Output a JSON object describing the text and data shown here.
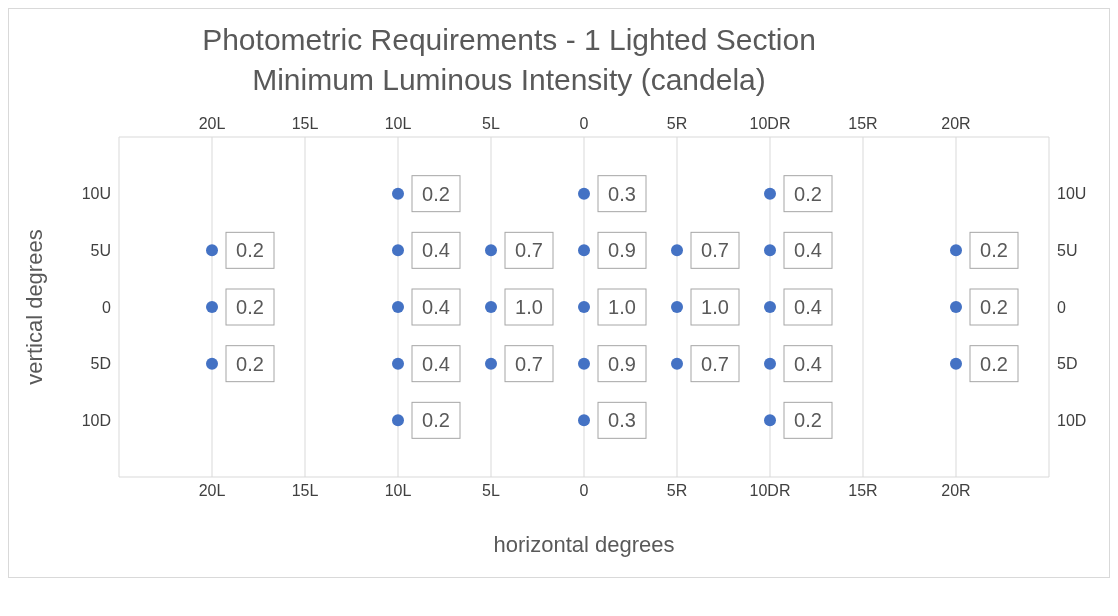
{
  "chart_data": {
    "type": "scatter",
    "title": "Photometric Requirements - 1 Lighted Section",
    "subtitle": "Minimum Luminous Intensity (candela)",
    "xlabel": "horizontal degrees",
    "ylabel": "vertical degrees",
    "xlim": [
      -25,
      25
    ],
    "xticks": [
      {
        "value": -20,
        "label": "20L"
      },
      {
        "value": -15,
        "label": "15L"
      },
      {
        "value": -10,
        "label": "10L"
      },
      {
        "value": -5,
        "label": "5L"
      },
      0,
      {
        "value": 5,
        "label": "5R"
      },
      {
        "value": 10,
        "label": "10DR"
      },
      {
        "value": 15,
        "label": "15R"
      },
      {
        "value": 20,
        "label": "20R"
      }
    ],
    "x2lim": [
      -25,
      25
    ],
    "x2ticks": [
      {
        "value": -20,
        "label": "20L"
      },
      {
        "value": -15,
        "label": "15L"
      },
      {
        "value": -10,
        "label": "10L"
      },
      {
        "value": -5,
        "label": "5L"
      },
      0,
      {
        "value": 5,
        "label": "5R"
      },
      {
        "value": 10,
        "label": "10DR"
      },
      {
        "value": 15,
        "label": "15R"
      },
      {
        "value": 20,
        "label": "20R"
      }
    ],
    "ylim": [
      -15,
      15
    ],
    "yticks": [
      {
        "value": 10,
        "label": "10U"
      },
      {
        "value": 5,
        "label": "5U"
      },
      0,
      {
        "value": -5,
        "label": "5D"
      },
      {
        "value": -10,
        "label": "10D"
      }
    ],
    "y2lim": [
      -15,
      15
    ],
    "y2ticks": [
      {
        "value": 10,
        "label": "10U"
      },
      {
        "value": 5,
        "label": "5U"
      },
      0,
      {
        "value": -5,
        "label": "5D"
      },
      {
        "value": -10,
        "label": "10D"
      }
    ],
    "grid": "x",
    "marker": "circle",
    "series": [
      {
        "color": "#4472c4",
        "x": [
          -20,
          -20,
          -20,
          -10,
          -10,
          -10,
          -10,
          -10,
          -5,
          -5,
          -5,
          0,
          0,
          0,
          0,
          0,
          5,
          5,
          5,
          10,
          10,
          10,
          10,
          10,
          20,
          20,
          20
        ],
        "values": [
          5,
          0,
          -5,
          10,
          5,
          0,
          -5,
          -10,
          5,
          0,
          -5,
          10,
          5,
          0,
          -5,
          -10,
          5,
          0,
          -5,
          10,
          5,
          0,
          -5,
          -10,
          5,
          0,
          -5
        ]
      }
    ],
    "annotations": [
      {
        "text": "0.2",
        "x": -20,
        "y": 5
      },
      {
        "text": "0.2",
        "x": -20,
        "y": 0
      },
      {
        "text": "0.2",
        "x": -20,
        "y": -5
      },
      {
        "text": "0.2",
        "x": -10,
        "y": 10
      },
      {
        "text": "0.4",
        "x": -10,
        "y": 5
      },
      {
        "text": "0.4",
        "x": -10,
        "y": 0
      },
      {
        "text": "0.4",
        "x": -10,
        "y": -5
      },
      {
        "text": "0.2",
        "x": -10,
        "y": -10
      },
      {
        "text": "0.7",
        "x": -5,
        "y": 5
      },
      {
        "text": "1.0",
        "x": -5,
        "y": 0
      },
      {
        "text": "0.7",
        "x": -5,
        "y": -5
      },
      {
        "text": "0.3",
        "x": 0,
        "y": 10
      },
      {
        "text": "0.9",
        "x": 0,
        "y": 5
      },
      {
        "text": "1.0",
        "x": 0,
        "y": 0
      },
      {
        "text": "0.9",
        "x": 0,
        "y": -5
      },
      {
        "text": "0.3",
        "x": 0,
        "y": -10
      },
      {
        "text": "0.7",
        "x": 5,
        "y": 5
      },
      {
        "text": "1.0",
        "x": 5,
        "y": 0
      },
      {
        "text": "0.7",
        "x": 5,
        "y": -5
      },
      {
        "text": "0.2",
        "x": 10,
        "y": 10
      },
      {
        "text": "0.4",
        "x": 10,
        "y": 5
      },
      {
        "text": "0.4",
        "x": 10,
        "y": 0
      },
      {
        "text": "0.4",
        "x": 10,
        "y": -5
      },
      {
        "text": "0.2",
        "x": 10,
        "y": -10
      },
      {
        "text": "0.2",
        "x": 20,
        "y": 5
      },
      {
        "text": "0.2",
        "x": 20,
        "y": 0
      },
      {
        "text": "0.2",
        "x": 20,
        "y": -5
      }
    ]
  }
}
